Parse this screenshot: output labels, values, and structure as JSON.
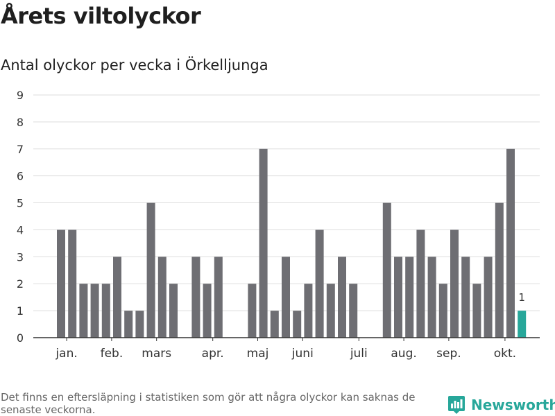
{
  "header": {
    "title": "Årets viltolyckor",
    "subtitle": "Antal olyckor per vecka i Örkelljunga"
  },
  "footer": {
    "note": "Det finns en eftersläpning i statistiken som gör att några olyckor kan saknas de senaste veckorna.",
    "brand": "Newsworthy"
  },
  "colors": {
    "bar": "#6e6e73",
    "highlight": "#27a79a",
    "grid": "#dddddd",
    "axis": "#333333"
  },
  "chart_data": {
    "type": "bar",
    "title": "Antal olyckor per vecka i Örkelljunga",
    "xlabel": "",
    "ylabel": "",
    "ylim": [
      0,
      9
    ],
    "yticks": [
      0,
      1,
      2,
      3,
      4,
      5,
      6,
      7,
      8,
      9
    ],
    "grid": true,
    "weeks": [
      1,
      2,
      3,
      4,
      5,
      6,
      7,
      8,
      9,
      10,
      11,
      12,
      13,
      14,
      15,
      16,
      17,
      18,
      19,
      20,
      21,
      22,
      23,
      24,
      25,
      26,
      27,
      28,
      29,
      30,
      31,
      32,
      33,
      34,
      35,
      36,
      37,
      38,
      39,
      40,
      41,
      42,
      43
    ],
    "values": [
      4,
      4,
      2,
      2,
      2,
      3,
      1,
      1,
      5,
      3,
      2,
      0,
      3,
      2,
      3,
      0,
      0,
      2,
      7,
      1,
      3,
      1,
      2,
      4,
      2,
      3,
      2,
      0,
      0,
      5,
      3,
      3,
      4,
      3,
      2,
      4,
      3,
      2,
      3,
      5,
      7,
      1,
      0
    ],
    "highlight_week": 42,
    "data_labels": [
      {
        "week": 42,
        "text": "1"
      }
    ],
    "x_tick_labels": [
      {
        "label": "jan.",
        "week": 1.5
      },
      {
        "label": "feb.",
        "week": 5.5
      },
      {
        "label": "mars",
        "week": 9.5
      },
      {
        "label": "apr.",
        "week": 14.5
      },
      {
        "label": "maj",
        "week": 18.5
      },
      {
        "label": "juni",
        "week": 22.5
      },
      {
        "label": "juli",
        "week": 27.5
      },
      {
        "label": "aug.",
        "week": 31.5
      },
      {
        "label": "sep.",
        "week": 35.5
      },
      {
        "label": "okt.",
        "week": 40.5
      }
    ]
  }
}
